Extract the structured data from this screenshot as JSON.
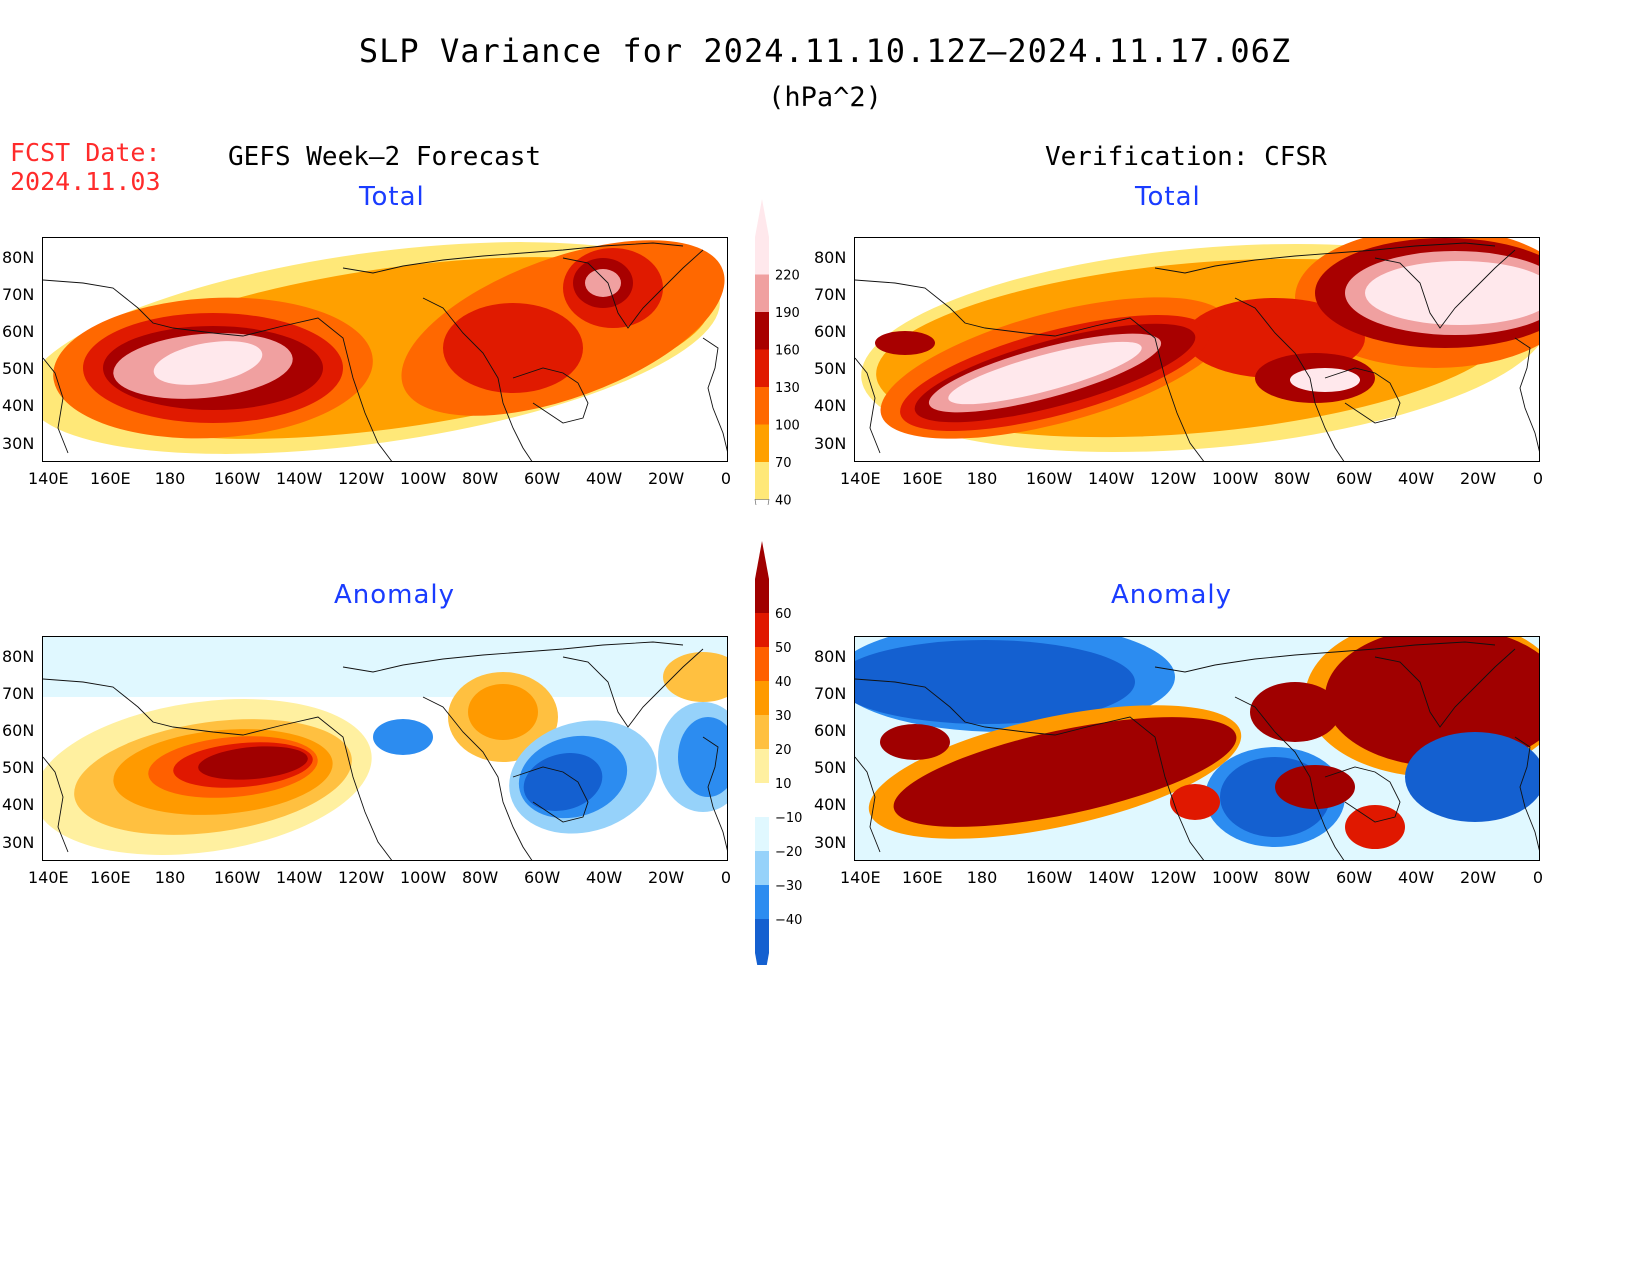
{
  "title": "SLP Variance for 2024.11.10.12Z–2024.11.17.06Z",
  "units": "(hPa^2)",
  "fcst_date_label": "FCST Date:",
  "fcst_date": "2024.11.03",
  "left_header": "GEFS Week–2 Forecast",
  "right_header": "Verification: CFSR",
  "panels": {
    "top_left": {
      "label": "Total"
    },
    "top_right": {
      "label": "Total"
    },
    "bottom_left": {
      "label": "Anomaly"
    },
    "bottom_right": {
      "label": "Anomaly"
    }
  },
  "lat_labels": [
    "80N",
    "70N",
    "60N",
    "50N",
    "40N",
    "30N"
  ],
  "lon_labels": [
    "140E",
    "160E",
    "180",
    "160W",
    "140W",
    "120W",
    "100W",
    "80W",
    "60W",
    "40W",
    "20W",
    "0"
  ],
  "total_colorbar": {
    "levels": [
      "40",
      "70",
      "100",
      "130",
      "160",
      "190",
      "220"
    ],
    "colors": [
      "#ffe878",
      "#ffa000",
      "#ff6800",
      "#e01a00",
      "#a80000",
      "#f0a0a0",
      "#ffe8ec"
    ]
  },
  "anomaly_colorbar": {
    "levels": [
      "−40",
      "−30",
      "−20",
      "−10",
      "10",
      "20",
      "30",
      "40",
      "50",
      "60"
    ],
    "colors": [
      "#1460d0",
      "#2c8cf0",
      "#96d2fa",
      "#e0f8ff",
      "#ffffff",
      "#fff0a0",
      "#ffc040",
      "#ff9a00",
      "#ff6000",
      "#e01800",
      "#a00000"
    ]
  },
  "icons": [
    "coastline-map"
  ]
}
